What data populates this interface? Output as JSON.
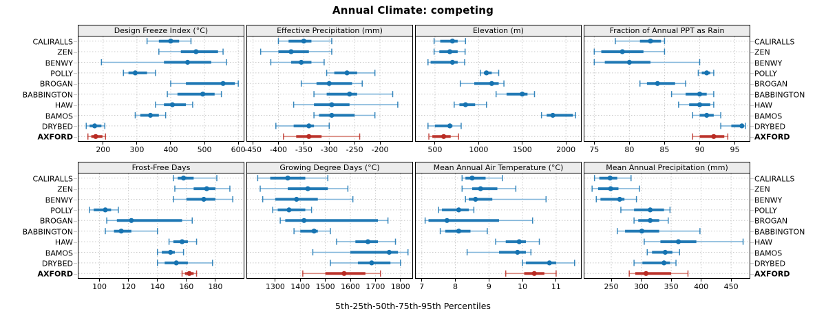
{
  "title": "Annual Climate: competing",
  "caption": "5th-25th-50th-75th-95th Percentiles",
  "stations": [
    "CALIRALLS",
    "ZEN",
    "BENWY",
    "POLLY",
    "BROGAN",
    "BABBINGTON",
    "HAW",
    "BAMOS",
    "DRYBED",
    "AXFORD"
  ],
  "highlight_station": "AXFORD",
  "colors": {
    "series_blue": "#1673b1",
    "series_blue_light": "#7fb4d9",
    "series_red": "#b92b23",
    "series_red_light": "#d9897f",
    "grid": "#c9c9c9",
    "strip_bg": "#ececec",
    "panel_border": "#000000"
  },
  "percentile_labels": [
    "5th",
    "25th",
    "50th",
    "75th",
    "95th"
  ],
  "chart_data": [
    {
      "type": "dotplot-percentiles",
      "row": "top",
      "col": 0,
      "title": "Design Freeze Index (°C)",
      "xlim": [
        125,
        618
      ],
      "ticks": [
        200,
        300,
        400,
        500,
        600
      ],
      "values": {
        "CALIRALLS": [
          330,
          365,
          400,
          425,
          460
        ],
        "ZEN": [
          365,
          430,
          475,
          540,
          555
        ],
        "BENWY": [
          195,
          380,
          450,
          520,
          565
        ],
        "POLLY": [
          260,
          275,
          295,
          330,
          355
        ],
        "BROGAN": [
          400,
          445,
          555,
          590,
          600
        ],
        "BABBINGTON": [
          390,
          420,
          495,
          530,
          550
        ],
        "HAW": [
          355,
          380,
          405,
          445,
          465
        ],
        "BAMOS": [
          295,
          310,
          340,
          365,
          385
        ],
        "DRYBED": [
          150,
          160,
          175,
          195,
          205
        ],
        "AXFORD": [
          155,
          165,
          178,
          198,
          207
        ]
      }
    },
    {
      "type": "dotplot-percentiles",
      "row": "top",
      "col": 1,
      "title": "Effective Precipitation (mm)",
      "xlim": [
        -463,
        -135
      ],
      "ticks": [
        -450,
        -400,
        -350,
        -300,
        -250,
        -200
      ],
      "values": {
        "CALIRALLS": [
          -400,
          -380,
          -350,
          -335,
          -295
        ],
        "ZEN": [
          -435,
          -400,
          -375,
          -340,
          -295
        ],
        "BENWY": [
          -415,
          -375,
          -355,
          -335,
          -310
        ],
        "POLLY": [
          -305,
          -290,
          -265,
          -245,
          -210
        ],
        "BROGAN": [
          -355,
          -325,
          -300,
          -255,
          -235
        ],
        "BABBINGTON": [
          -330,
          -305,
          -260,
          -245,
          -175
        ],
        "HAW": [
          -370,
          -330,
          -295,
          -260,
          -165
        ],
        "BAMOS": [
          -330,
          -320,
          -295,
          -250,
          -210
        ],
        "DRYBED": [
          -405,
          -370,
          -340,
          -330,
          -300
        ],
        "AXFORD": [
          -390,
          -365,
          -340,
          -315,
          -240
        ]
      }
    },
    {
      "type": "dotplot-percentiles",
      "row": "top",
      "col": 2,
      "title": "Elevation (m)",
      "xlim": [
        272,
        2180
      ],
      "ticks": [
        500,
        1000,
        1500,
        2000
      ],
      "values": {
        "CALIRALLS": [
          490,
          560,
          700,
          760,
          850
        ],
        "ZEN": [
          490,
          550,
          670,
          760,
          845
        ],
        "BENWY": [
          420,
          450,
          700,
          760,
          840
        ],
        "POLLY": [
          1020,
          1060,
          1090,
          1150,
          1230
        ],
        "BROGAN": [
          790,
          950,
          1150,
          1230,
          1290
        ],
        "BABBINGTON": [
          1200,
          1320,
          1500,
          1560,
          1640
        ],
        "HAW": [
          720,
          780,
          850,
          960,
          1090
        ],
        "BAMOS": [
          1720,
          1780,
          1850,
          2080,
          2110
        ],
        "DRYBED": [
          420,
          500,
          670,
          700,
          800
        ],
        "AXFORD": [
          430,
          470,
          600,
          680,
          770
        ]
      }
    },
    {
      "type": "dotplot-percentiles",
      "row": "top",
      "col": 3,
      "title": "Fraction of Annual PPT as Rain",
      "xlim": [
        73.5,
        97.2
      ],
      "ticks": [
        75,
        80,
        85,
        90,
        95
      ],
      "values": {
        "CALIRALLS": [
          78,
          81.5,
          83,
          84.5,
          85
        ],
        "ZEN": [
          75,
          76,
          79,
          82,
          85
        ],
        "BENWY": [
          75,
          76.5,
          80,
          83,
          90
        ],
        "POLLY": [
          89.8,
          90.3,
          91,
          91.5,
          92
        ],
        "BROGAN": [
          81.5,
          82.5,
          84,
          86.5,
          88
        ],
        "BABBINGTON": [
          86,
          88,
          90,
          91,
          92
        ],
        "HAW": [
          87,
          88.5,
          90,
          91.5,
          92
        ],
        "BAMOS": [
          89,
          90,
          91,
          92,
          93
        ],
        "DRYBED": [
          93,
          94.5,
          96,
          96.2,
          96.5
        ],
        "AXFORD": [
          89,
          90,
          92,
          93.5,
          94
        ]
      }
    },
    {
      "type": "dotplot-percentiles",
      "row": "bottom",
      "col": 0,
      "title": "Frost-Free Days",
      "xlim": [
        85,
        200
      ],
      "ticks": [
        100,
        120,
        140,
        160,
        180
      ],
      "values": {
        "CALIRALLS": [
          151,
          154,
          158,
          165,
          181
        ],
        "ZEN": [
          152,
          165,
          174,
          180,
          190
        ],
        "BENWY": [
          151,
          160,
          172,
          180,
          192
        ],
        "POLLY": [
          93,
          96,
          104,
          108,
          113
        ],
        "BROGAN": [
          105,
          112,
          122,
          157,
          164
        ],
        "BABBINGTON": [
          104,
          110,
          115,
          122,
          140
        ],
        "HAW": [
          148,
          151,
          157,
          161,
          167
        ],
        "BAMOS": [
          140,
          143,
          149,
          152,
          158
        ],
        "DRYBED": [
          140,
          145,
          153,
          161,
          178
        ],
        "AXFORD": [
          157,
          159,
          162,
          165,
          167
        ]
      }
    },
    {
      "type": "dotplot-percentiles",
      "row": "bottom",
      "col": 1,
      "title": "Growing Degree Days (°C)",
      "xlim": [
        1185,
        1850
      ],
      "ticks": [
        1300,
        1400,
        1500,
        1600,
        1700,
        1800
      ],
      "values": {
        "CALIRALLS": [
          1230,
          1280,
          1350,
          1420,
          1510
        ],
        "ZEN": [
          1240,
          1350,
          1430,
          1510,
          1590
        ],
        "BENWY": [
          1250,
          1300,
          1385,
          1470,
          1610
        ],
        "POLLY": [
          1290,
          1310,
          1355,
          1420,
          1445
        ],
        "BROGAN": [
          1320,
          1340,
          1415,
          1710,
          1750
        ],
        "BABBINGTON": [
          1375,
          1400,
          1455,
          1470,
          1520
        ],
        "HAW": [
          1545,
          1620,
          1670,
          1710,
          1780
        ],
        "BAMOS": [
          1450,
          1600,
          1755,
          1790,
          1830
        ],
        "DRYBED": [
          1520,
          1630,
          1685,
          1760,
          1800
        ],
        "AXFORD": [
          1410,
          1500,
          1575,
          1660,
          1720
        ]
      }
    },
    {
      "type": "dotplot-percentiles",
      "row": "bottom",
      "col": 2,
      "title": "Mean Annual Air Temperature (°C)",
      "xlim": [
        6.8,
        11.76
      ],
      "ticks": [
        7,
        8,
        9,
        10,
        11
      ],
      "values": {
        "CALIRALLS": [
          8.2,
          8.3,
          8.5,
          8.9,
          9.4
        ],
        "ZEN": [
          8.2,
          8.5,
          8.75,
          9.25,
          9.8
        ],
        "BENWY": [
          8.3,
          8.4,
          8.6,
          9.1,
          10.7
        ],
        "POLLY": [
          7.5,
          7.6,
          8.1,
          8.4,
          8.55
        ],
        "BROGAN": [
          7.1,
          7.2,
          7.75,
          9.3,
          10.3
        ],
        "BABBINGTON": [
          7.55,
          7.7,
          8.1,
          8.45,
          8.95
        ],
        "HAW": [
          9.2,
          9.5,
          9.9,
          10.1,
          10.5
        ],
        "BAMOS": [
          8.35,
          9.3,
          9.85,
          10.1,
          10.25
        ],
        "DRYBED": [
          10.0,
          10.1,
          10.8,
          11.0,
          11.55
        ],
        "AXFORD": [
          9.5,
          10.05,
          10.35,
          10.65,
          11.0
        ]
      }
    },
    {
      "type": "dotplot-percentiles",
      "row": "bottom",
      "col": 3,
      "title": "Mean Annual Precipitation (mm)",
      "xlim": [
        204,
        482
      ],
      "ticks": [
        250,
        300,
        350,
        400,
        450
      ],
      "values": {
        "CALIRALLS": [
          222,
          230,
          248,
          260,
          283
        ],
        "ZEN": [
          218,
          228,
          249,
          262,
          297
        ],
        "BENWY": [
          225,
          232,
          264,
          272,
          292
        ],
        "POLLY": [
          266,
          288,
          315,
          338,
          348
        ],
        "BROGAN": [
          288,
          295,
          315,
          330,
          345
        ],
        "BABBINGTON": [
          260,
          273,
          301,
          330,
          398
        ],
        "HAW": [
          305,
          332,
          362,
          392,
          470
        ],
        "BAMOS": [
          310,
          318,
          340,
          352,
          364
        ],
        "DRYBED": [
          288,
          302,
          338,
          348,
          358
        ],
        "AXFORD": [
          280,
          290,
          308,
          350,
          378
        ]
      }
    }
  ]
}
